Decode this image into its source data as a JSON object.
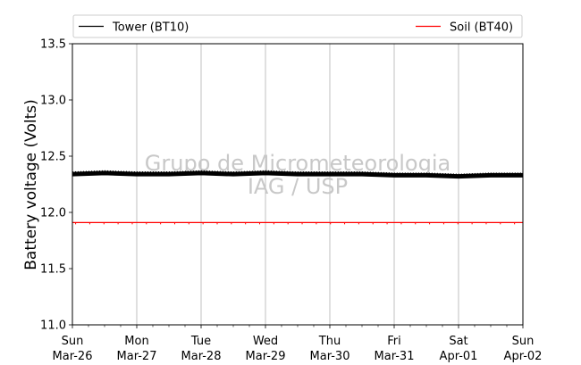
{
  "chart_data": {
    "type": "line",
    "ylabel": "Battery voltage (Volts)",
    "ylim": [
      11.0,
      13.5
    ],
    "yticks": [
      "11.0",
      "11.5",
      "12.0",
      "12.5",
      "13.0",
      "13.5"
    ],
    "xlim": [
      0,
      7
    ],
    "x_ticks": [
      {
        "day": "Sun",
        "date": "Mar-26"
      },
      {
        "day": "Mon",
        "date": "Mar-27"
      },
      {
        "day": "Tue",
        "date": "Mar-28"
      },
      {
        "day": "Wed",
        "date": "Mar-29"
      },
      {
        "day": "Thu",
        "date": "Mar-30"
      },
      {
        "day": "Fri",
        "date": "Mar-31"
      },
      {
        "day": "Sat",
        "date": "Apr-01"
      },
      {
        "day": "Sun",
        "date": "Apr-02"
      }
    ],
    "grid": "vertical",
    "legend_position": "top",
    "series": [
      {
        "name": "Tower (BT10)",
        "color": "#000000",
        "x": [
          0,
          0.5,
          1,
          1.5,
          2,
          2.5,
          3,
          3.5,
          4,
          4.5,
          5,
          5.5,
          6,
          6.5,
          7
        ],
        "values": [
          12.34,
          12.35,
          12.34,
          12.34,
          12.35,
          12.34,
          12.35,
          12.34,
          12.34,
          12.34,
          12.33,
          12.33,
          12.32,
          12.33,
          12.33
        ]
      },
      {
        "name": "Soil (BT40)",
        "color": "#ff0000",
        "x": [
          0,
          7
        ],
        "values": [
          11.91,
          11.91
        ]
      }
    ],
    "watermark": [
      "Grupo de Micrometeorologia",
      "IAG / USP"
    ]
  }
}
